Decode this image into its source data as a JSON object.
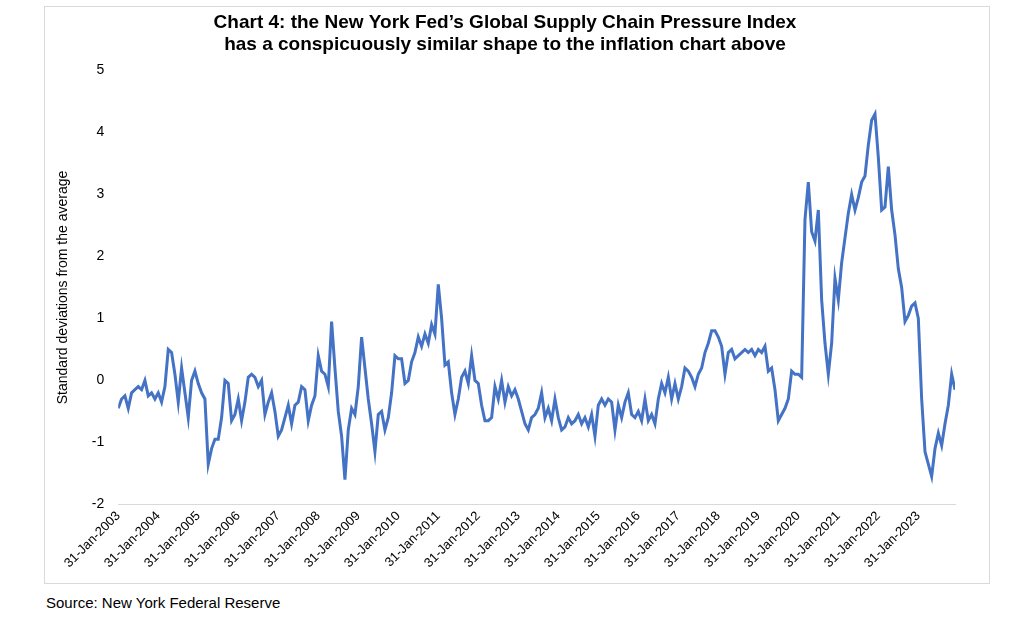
{
  "chart_data": {
    "type": "line",
    "title": [
      "Chart 4: the New York Fed’s Global Supply Chain Pressure Index",
      "has a conspicuously similar shape to the inflation chart above"
    ],
    "y_label": "Standard deviations from the average",
    "source": "Source: New York Federal Reserve",
    "categories": [
      "31-Jan-2003",
      null,
      null,
      null,
      null,
      null,
      null,
      null,
      null,
      null,
      null,
      null,
      "31-Jan-2004",
      null,
      null,
      null,
      null,
      null,
      null,
      null,
      null,
      null,
      null,
      null,
      "31-Jan-2005",
      null,
      null,
      null,
      null,
      null,
      null,
      null,
      null,
      null,
      null,
      null,
      "31-Jan-2006",
      null,
      null,
      null,
      null,
      null,
      null,
      null,
      null,
      null,
      null,
      null,
      "31-Jan-2007",
      null,
      null,
      null,
      null,
      null,
      null,
      null,
      null,
      null,
      null,
      null,
      "31-Jan-2008",
      null,
      null,
      null,
      null,
      null,
      null,
      null,
      null,
      null,
      null,
      null,
      "31-Jan-2009",
      null,
      null,
      null,
      null,
      null,
      null,
      null,
      null,
      null,
      null,
      null,
      "31-Jan-2010",
      null,
      null,
      null,
      null,
      null,
      null,
      null,
      null,
      null,
      null,
      null,
      "31-Jan-2011",
      null,
      null,
      null,
      null,
      null,
      null,
      null,
      null,
      null,
      null,
      null,
      "31-Jan-2012",
      null,
      null,
      null,
      null,
      null,
      null,
      null,
      null,
      null,
      null,
      null,
      "31-Jan-2013",
      null,
      null,
      null,
      null,
      null,
      null,
      null,
      null,
      null,
      null,
      null,
      "31-Jan-2014",
      null,
      null,
      null,
      null,
      null,
      null,
      null,
      null,
      null,
      null,
      null,
      "31-Jan-2015",
      null,
      null,
      null,
      null,
      null,
      null,
      null,
      null,
      null,
      null,
      null,
      "31-Jan-2016",
      null,
      null,
      null,
      null,
      null,
      null,
      null,
      null,
      null,
      null,
      null,
      "31-Jan-2017",
      null,
      null,
      null,
      null,
      null,
      null,
      null,
      null,
      null,
      null,
      null,
      "31-Jan-2018",
      null,
      null,
      null,
      null,
      null,
      null,
      null,
      null,
      null,
      null,
      null,
      "31-Jan-2019",
      null,
      null,
      null,
      null,
      null,
      null,
      null,
      null,
      null,
      null,
      null,
      "31-Jan-2020",
      null,
      null,
      null,
      null,
      null,
      null,
      null,
      null,
      null,
      null,
      null,
      "31-Jan-2021",
      null,
      null,
      null,
      null,
      null,
      null,
      null,
      null,
      null,
      null,
      null,
      "31-Jan-2022",
      null,
      null,
      null,
      null,
      null,
      null,
      null,
      null,
      null,
      null,
      null,
      "31-Jan-2023",
      null,
      null,
      null,
      null,
      null,
      null,
      null,
      null,
      null,
      null,
      null
    ],
    "values": [
      -0.45,
      -0.3,
      -0.25,
      -0.45,
      -0.2,
      -0.15,
      -0.1,
      -0.15,
      0.0,
      -0.25,
      -0.2,
      -0.3,
      -0.2,
      -0.35,
      -0.1,
      0.5,
      0.45,
      0.1,
      -0.35,
      0.2,
      -0.2,
      -0.6,
      0.0,
      0.15,
      -0.05,
      -0.2,
      -0.3,
      -1.35,
      -1.1,
      -0.95,
      -0.95,
      -0.6,
      0.0,
      -0.05,
      -0.65,
      -0.55,
      -0.3,
      -0.65,
      -0.35,
      0.05,
      0.1,
      0.05,
      -0.1,
      0.0,
      -0.55,
      -0.35,
      -0.2,
      -0.5,
      -0.9,
      -0.8,
      -0.6,
      -0.4,
      -0.7,
      -0.4,
      -0.35,
      -0.1,
      -0.15,
      -0.65,
      -0.4,
      -0.25,
      0.4,
      0.15,
      0.1,
      -0.1,
      0.95,
      0.2,
      -0.5,
      -0.9,
      -1.6,
      -0.8,
      -0.45,
      -0.55,
      -0.1,
      0.7,
      0.2,
      -0.3,
      -0.7,
      -1.15,
      -0.55,
      -0.5,
      -0.8,
      -0.6,
      -0.2,
      0.4,
      0.35,
      0.35,
      -0.05,
      0.0,
      0.3,
      0.45,
      0.7,
      0.55,
      0.75,
      0.6,
      0.9,
      0.75,
      1.55,
      1.0,
      0.25,
      0.3,
      -0.2,
      -0.55,
      -0.3,
      0.05,
      0.15,
      -0.05,
      0.4,
      0.0,
      -0.05,
      -0.4,
      -0.65,
      -0.65,
      -0.6,
      -0.1,
      -0.3,
      0.0,
      -0.35,
      -0.1,
      -0.25,
      -0.15,
      -0.3,
      -0.5,
      -0.7,
      -0.8,
      -0.6,
      -0.55,
      -0.45,
      -0.2,
      -0.6,
      -0.45,
      -0.65,
      -0.3,
      -0.6,
      -0.8,
      -0.75,
      -0.6,
      -0.7,
      -0.65,
      -0.55,
      -0.7,
      -0.6,
      -0.75,
      -0.55,
      -0.9,
      -0.4,
      -0.3,
      -0.4,
      -0.3,
      -0.35,
      -0.8,
      -0.4,
      -0.6,
      -0.35,
      -0.2,
      -0.55,
      -0.6,
      -0.5,
      -0.65,
      -0.3,
      -0.65,
      -0.55,
      -0.7,
      -0.3,
      -0.05,
      -0.2,
      0.05,
      -0.3,
      -0.05,
      -0.3,
      -0.1,
      0.2,
      0.15,
      0.05,
      -0.1,
      0.1,
      0.2,
      0.45,
      0.6,
      0.8,
      0.8,
      0.7,
      0.55,
      0.1,
      0.45,
      0.5,
      0.35,
      0.4,
      0.45,
      0.5,
      0.45,
      0.5,
      0.4,
      0.5,
      0.45,
      0.55,
      0.15,
      0.2,
      -0.15,
      -0.65,
      -0.55,
      -0.45,
      -0.3,
      0.15,
      0.1,
      0.1,
      0.05,
      2.6,
      3.2,
      2.4,
      2.25,
      2.75,
      1.3,
      0.6,
      0.1,
      0.6,
      1.65,
      1.3,
      1.9,
      2.3,
      2.7,
      3.0,
      2.75,
      2.95,
      3.2,
      3.3,
      3.8,
      4.2,
      4.3,
      3.6,
      2.75,
      2.8,
      3.45,
      2.75,
      2.35,
      1.8,
      1.5,
      0.95,
      1.05,
      1.2,
      1.25,
      1.0,
      -0.3,
      -1.15,
      -1.35,
      -1.55,
      -1.1,
      -0.85,
      -1.05,
      -0.7,
      -0.4,
      0.1,
      -0.15
    ],
    "color": "#4472c4",
    "ylim": [
      -2,
      5
    ],
    "yticks": [
      -2,
      -1,
      0,
      1,
      2,
      3,
      4,
      5
    ],
    "grid": false
  }
}
